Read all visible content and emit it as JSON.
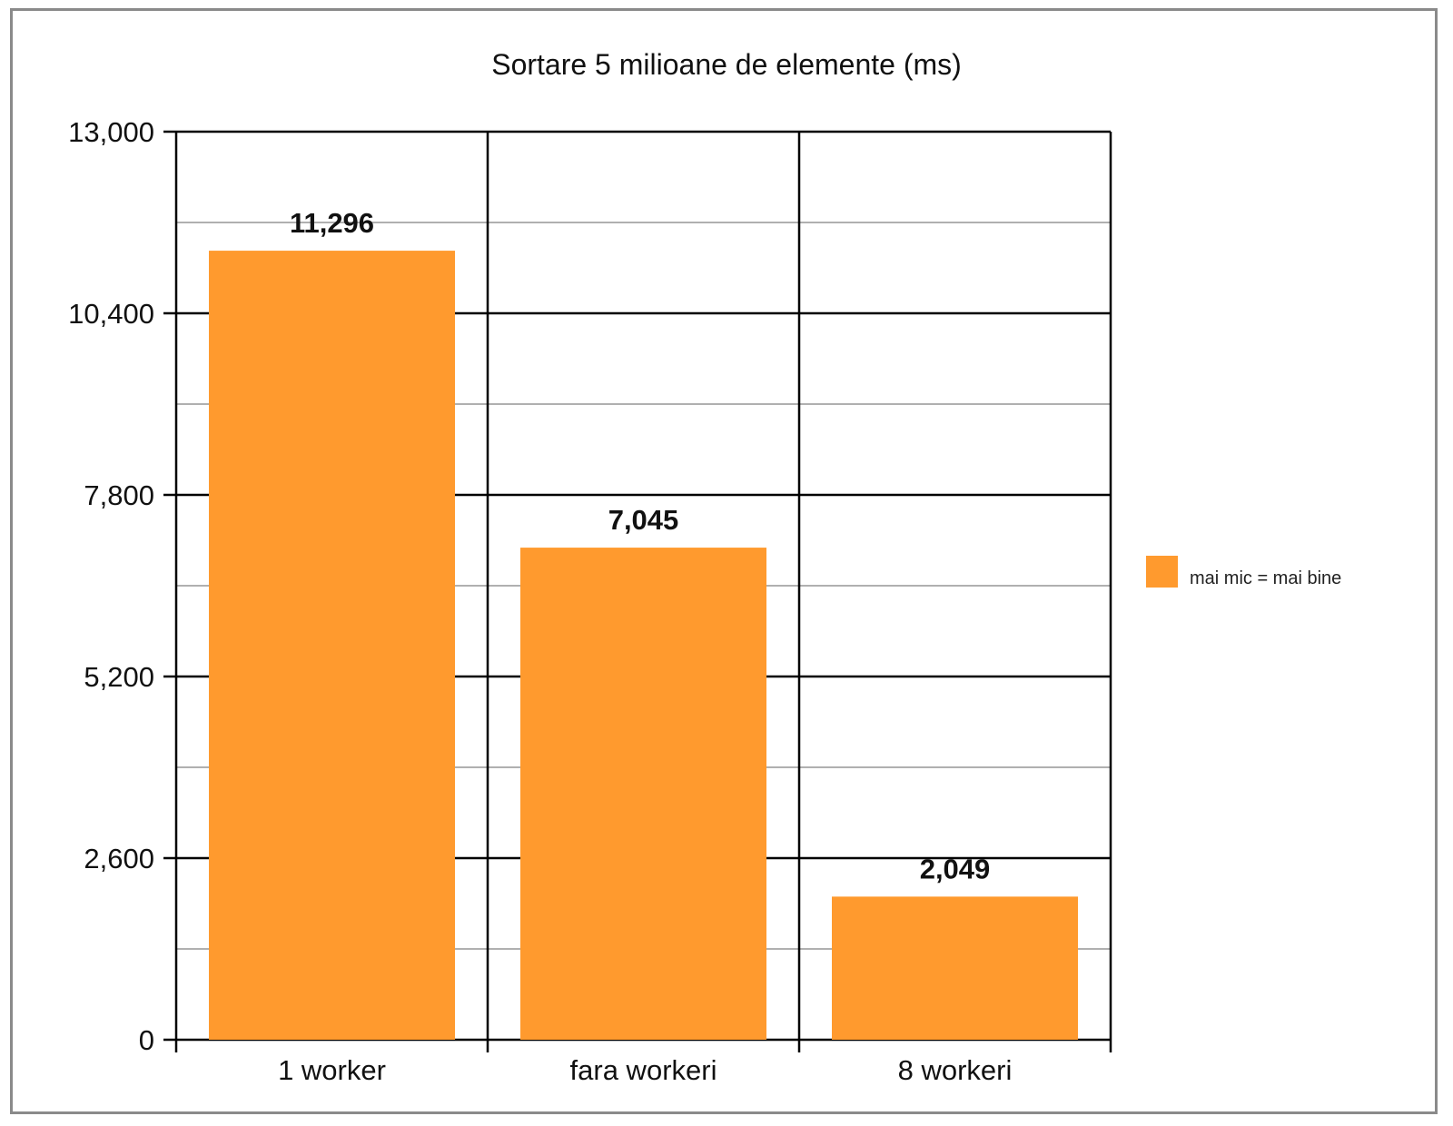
{
  "chart_data": {
    "type": "bar",
    "title": "Sortare 5 milioane de elemente (ms)",
    "xlabel": "",
    "ylabel": "",
    "categories": [
      "1 worker",
      "fara workeri",
      "8 workeri"
    ],
    "series": [
      {
        "name": "mai mic = mai bine",
        "values": [
          11296,
          7045,
          2049
        ]
      }
    ],
    "data_labels": [
      "11,296",
      "7,045",
      "2,049"
    ],
    "ylim": [
      0,
      13000
    ],
    "yticks": [
      0,
      2600,
      5200,
      7800,
      10400,
      13000
    ],
    "ytick_labels": [
      "0",
      "2,600",
      "5,200",
      "7,800",
      "10,400",
      "13,000"
    ],
    "minor_gridlines": true,
    "grid": true,
    "legend": "right",
    "colors": {
      "bar": "#FF9A2E",
      "major_grid": "#000000",
      "minor_grid": "#b0b0b0"
    }
  }
}
